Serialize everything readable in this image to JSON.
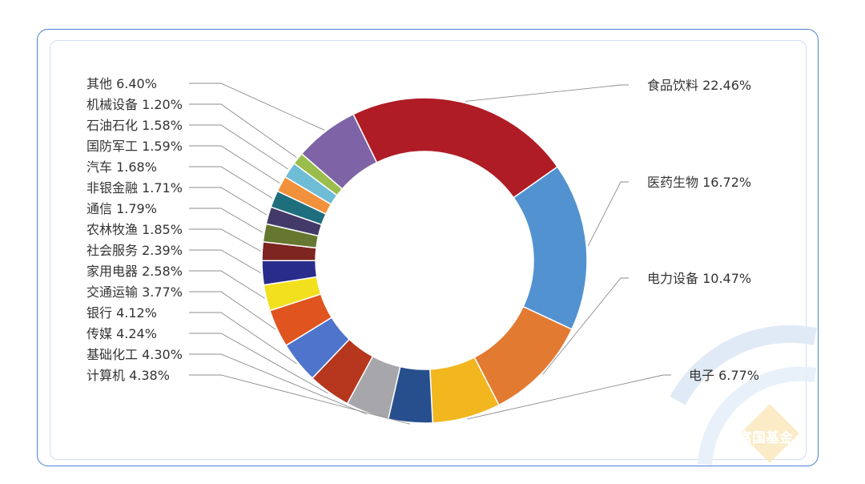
{
  "brand": {
    "watermark_text": "富国基金",
    "frame_color": "#4a7fd6"
  },
  "chart_data": {
    "type": "pie",
    "variant": "donut",
    "title": "",
    "unit": "%",
    "slices": [
      {
        "name": "食品饮料",
        "value": 22.46,
        "label": "食品饮料 22.46%",
        "color": "#b01c25"
      },
      {
        "name": "医药生物",
        "value": 16.72,
        "label": "医药生物 16.72%",
        "color": "#5392d1"
      },
      {
        "name": "电力设备",
        "value": 10.47,
        "label": "电力设备 10.47%",
        "color": "#e27a32"
      },
      {
        "name": "电子",
        "value": 6.77,
        "label": "电子 6.77%",
        "color": "#f2b61e"
      },
      {
        "name": "计算机",
        "value": 4.38,
        "label": "计算机 4.38%",
        "color": "#274f8e"
      },
      {
        "name": "基础化工",
        "value": 4.3,
        "label": "基础化工 4.30%",
        "color": "#a7a7ab"
      },
      {
        "name": "传媒",
        "value": 4.24,
        "label": "传媒 4.24%",
        "color": "#b6361e"
      },
      {
        "name": "银行",
        "value": 4.12,
        "label": "银行 4.12%",
        "color": "#4f74cc"
      },
      {
        "name": "交通运输",
        "value": 3.77,
        "label": "交通运输 3.77%",
        "color": "#e0541f"
      },
      {
        "name": "家用电器",
        "value": 2.58,
        "label": "家用电器 2.58%",
        "color": "#f2e01e"
      },
      {
        "name": "社会服务",
        "value": 2.39,
        "label": "社会服务 2.39%",
        "color": "#2a2c8c"
      },
      {
        "name": "农林牧渔",
        "value": 1.85,
        "label": "农林牧渔 1.85%",
        "color": "#7e2521"
      },
      {
        "name": "通信",
        "value": 1.79,
        "label": "通信 1.79%",
        "color": "#667830"
      },
      {
        "name": "非银金融",
        "value": 1.71,
        "label": "非银金融 1.71%",
        "color": "#433a6a"
      },
      {
        "name": "汽车",
        "value": 1.68,
        "label": "汽车 1.68%",
        "color": "#1f6e7e"
      },
      {
        "name": "国防军工",
        "value": 1.59,
        "label": "国防军工 1.59%",
        "color": "#f2913b"
      },
      {
        "name": "石油石化",
        "value": 1.58,
        "label": "石油石化 1.58%",
        "color": "#6fbcd6"
      },
      {
        "name": "机械设备",
        "value": 1.2,
        "label": "机械设备 1.20%",
        "color": "#9bbd4d"
      },
      {
        "name": "其他",
        "value": 6.4,
        "label": "其他 6.40%",
        "color": "#7e64a6"
      }
    ]
  }
}
